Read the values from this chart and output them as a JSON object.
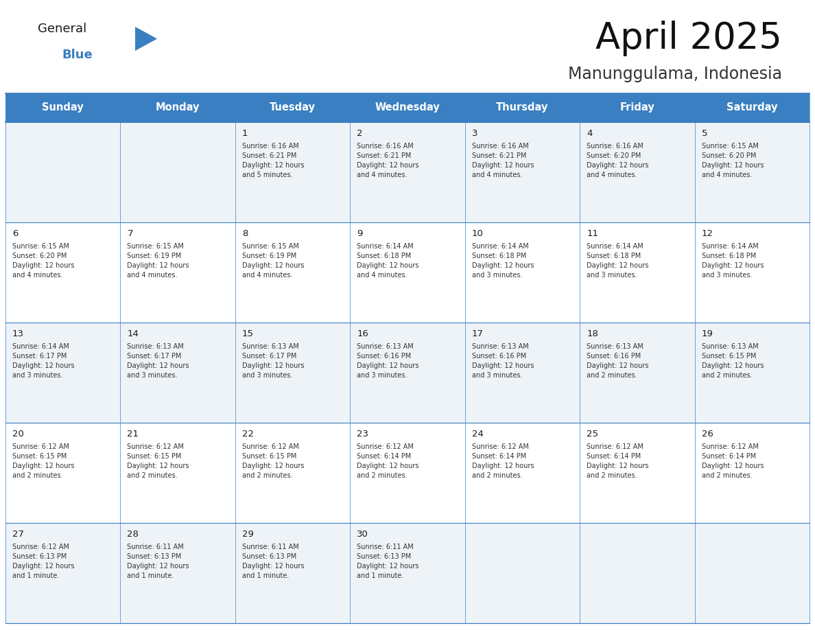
{
  "title": "April 2025",
  "location": "Manunggulama, Indonesia",
  "header_color": "#3a7fc1",
  "header_text_color": "#ffffff",
  "cell_bg_even": "#eef3f8",
  "cell_bg_odd": "#ffffff",
  "cell_border_color": "#3a7fc1",
  "day_number_color": "#1a1a1a",
  "cell_text_color": "#333333",
  "background_color": "#ffffff",
  "logo_general_color": "#1a1a1a",
  "logo_blue_color": "#3a7fc1",
  "days_of_week": [
    "Sunday",
    "Monday",
    "Tuesday",
    "Wednesday",
    "Thursday",
    "Friday",
    "Saturday"
  ],
  "weeks": [
    [
      {
        "day": "",
        "sunrise": "",
        "sunset": "",
        "daylight": ""
      },
      {
        "day": "",
        "sunrise": "",
        "sunset": "",
        "daylight": ""
      },
      {
        "day": "1",
        "sunrise": "Sunrise: 6:16 AM",
        "sunset": "Sunset: 6:21 PM",
        "daylight": "Daylight: 12 hours\nand 5 minutes."
      },
      {
        "day": "2",
        "sunrise": "Sunrise: 6:16 AM",
        "sunset": "Sunset: 6:21 PM",
        "daylight": "Daylight: 12 hours\nand 4 minutes."
      },
      {
        "day": "3",
        "sunrise": "Sunrise: 6:16 AM",
        "sunset": "Sunset: 6:21 PM",
        "daylight": "Daylight: 12 hours\nand 4 minutes."
      },
      {
        "day": "4",
        "sunrise": "Sunrise: 6:16 AM",
        "sunset": "Sunset: 6:20 PM",
        "daylight": "Daylight: 12 hours\nand 4 minutes."
      },
      {
        "day": "5",
        "sunrise": "Sunrise: 6:15 AM",
        "sunset": "Sunset: 6:20 PM",
        "daylight": "Daylight: 12 hours\nand 4 minutes."
      }
    ],
    [
      {
        "day": "6",
        "sunrise": "Sunrise: 6:15 AM",
        "sunset": "Sunset: 6:20 PM",
        "daylight": "Daylight: 12 hours\nand 4 minutes."
      },
      {
        "day": "7",
        "sunrise": "Sunrise: 6:15 AM",
        "sunset": "Sunset: 6:19 PM",
        "daylight": "Daylight: 12 hours\nand 4 minutes."
      },
      {
        "day": "8",
        "sunrise": "Sunrise: 6:15 AM",
        "sunset": "Sunset: 6:19 PM",
        "daylight": "Daylight: 12 hours\nand 4 minutes."
      },
      {
        "day": "9",
        "sunrise": "Sunrise: 6:14 AM",
        "sunset": "Sunset: 6:18 PM",
        "daylight": "Daylight: 12 hours\nand 4 minutes."
      },
      {
        "day": "10",
        "sunrise": "Sunrise: 6:14 AM",
        "sunset": "Sunset: 6:18 PM",
        "daylight": "Daylight: 12 hours\nand 3 minutes."
      },
      {
        "day": "11",
        "sunrise": "Sunrise: 6:14 AM",
        "sunset": "Sunset: 6:18 PM",
        "daylight": "Daylight: 12 hours\nand 3 minutes."
      },
      {
        "day": "12",
        "sunrise": "Sunrise: 6:14 AM",
        "sunset": "Sunset: 6:18 PM",
        "daylight": "Daylight: 12 hours\nand 3 minutes."
      }
    ],
    [
      {
        "day": "13",
        "sunrise": "Sunrise: 6:14 AM",
        "sunset": "Sunset: 6:17 PM",
        "daylight": "Daylight: 12 hours\nand 3 minutes."
      },
      {
        "day": "14",
        "sunrise": "Sunrise: 6:13 AM",
        "sunset": "Sunset: 6:17 PM",
        "daylight": "Daylight: 12 hours\nand 3 minutes."
      },
      {
        "day": "15",
        "sunrise": "Sunrise: 6:13 AM",
        "sunset": "Sunset: 6:17 PM",
        "daylight": "Daylight: 12 hours\nand 3 minutes."
      },
      {
        "day": "16",
        "sunrise": "Sunrise: 6:13 AM",
        "sunset": "Sunset: 6:16 PM",
        "daylight": "Daylight: 12 hours\nand 3 minutes."
      },
      {
        "day": "17",
        "sunrise": "Sunrise: 6:13 AM",
        "sunset": "Sunset: 6:16 PM",
        "daylight": "Daylight: 12 hours\nand 3 minutes."
      },
      {
        "day": "18",
        "sunrise": "Sunrise: 6:13 AM",
        "sunset": "Sunset: 6:16 PM",
        "daylight": "Daylight: 12 hours\nand 2 minutes."
      },
      {
        "day": "19",
        "sunrise": "Sunrise: 6:13 AM",
        "sunset": "Sunset: 6:15 PM",
        "daylight": "Daylight: 12 hours\nand 2 minutes."
      }
    ],
    [
      {
        "day": "20",
        "sunrise": "Sunrise: 6:12 AM",
        "sunset": "Sunset: 6:15 PM",
        "daylight": "Daylight: 12 hours\nand 2 minutes."
      },
      {
        "day": "21",
        "sunrise": "Sunrise: 6:12 AM",
        "sunset": "Sunset: 6:15 PM",
        "daylight": "Daylight: 12 hours\nand 2 minutes."
      },
      {
        "day": "22",
        "sunrise": "Sunrise: 6:12 AM",
        "sunset": "Sunset: 6:15 PM",
        "daylight": "Daylight: 12 hours\nand 2 minutes."
      },
      {
        "day": "23",
        "sunrise": "Sunrise: 6:12 AM",
        "sunset": "Sunset: 6:14 PM",
        "daylight": "Daylight: 12 hours\nand 2 minutes."
      },
      {
        "day": "24",
        "sunrise": "Sunrise: 6:12 AM",
        "sunset": "Sunset: 6:14 PM",
        "daylight": "Daylight: 12 hours\nand 2 minutes."
      },
      {
        "day": "25",
        "sunrise": "Sunrise: 6:12 AM",
        "sunset": "Sunset: 6:14 PM",
        "daylight": "Daylight: 12 hours\nand 2 minutes."
      },
      {
        "day": "26",
        "sunrise": "Sunrise: 6:12 AM",
        "sunset": "Sunset: 6:14 PM",
        "daylight": "Daylight: 12 hours\nand 2 minutes."
      }
    ],
    [
      {
        "day": "27",
        "sunrise": "Sunrise: 6:12 AM",
        "sunset": "Sunset: 6:13 PM",
        "daylight": "Daylight: 12 hours\nand 1 minute."
      },
      {
        "day": "28",
        "sunrise": "Sunrise: 6:11 AM",
        "sunset": "Sunset: 6:13 PM",
        "daylight": "Daylight: 12 hours\nand 1 minute."
      },
      {
        "day": "29",
        "sunrise": "Sunrise: 6:11 AM",
        "sunset": "Sunset: 6:13 PM",
        "daylight": "Daylight: 12 hours\nand 1 minute."
      },
      {
        "day": "30",
        "sunrise": "Sunrise: 6:11 AM",
        "sunset": "Sunset: 6:13 PM",
        "daylight": "Daylight: 12 hours\nand 1 minute."
      },
      {
        "day": "",
        "sunrise": "",
        "sunset": "",
        "daylight": ""
      },
      {
        "day": "",
        "sunrise": "",
        "sunset": "",
        "daylight": ""
      },
      {
        "day": "",
        "sunrise": "",
        "sunset": "",
        "daylight": ""
      }
    ]
  ]
}
